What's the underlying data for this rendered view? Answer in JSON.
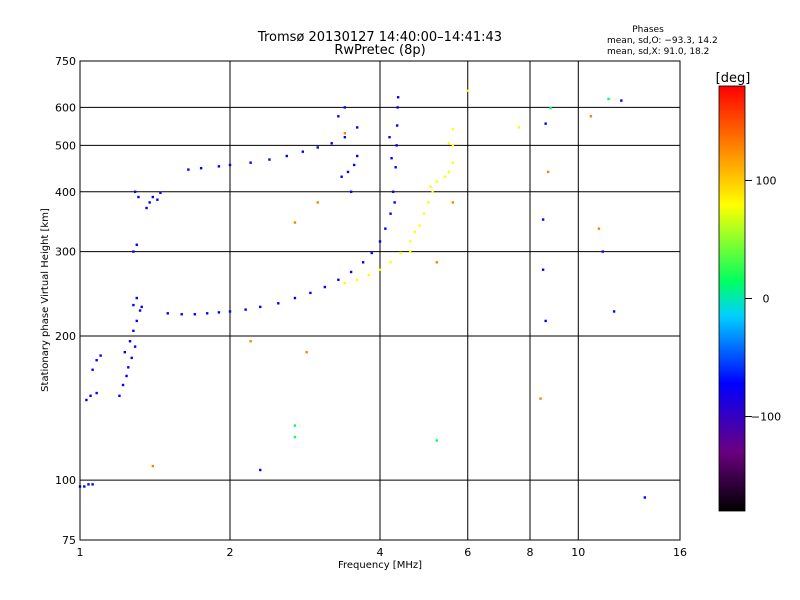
{
  "chart_data": {
    "type": "scatter",
    "title": "Tromsø 20130127 14:40:00–14:41:43",
    "subtitle": "RwPretec (8p)",
    "xlabel": "Frequency [MHz]",
    "ylabel": "Stationary phase Virtual Height [km]",
    "x_scale": "log",
    "y_scale": "log",
    "xlim": [
      1,
      16
    ],
    "ylim": [
      75,
      750
    ],
    "x_ticks": [
      1,
      2,
      4,
      6,
      8,
      10,
      16
    ],
    "y_ticks": [
      75,
      100,
      200,
      300,
      400,
      500,
      600,
      750
    ],
    "grid": true,
    "phases": {
      "title": "Phases",
      "line_o": "mean, sd,O: −93.3, 14.2",
      "line_x": "mean, sd,X:  91.0, 18.2"
    },
    "colorbar": {
      "label": "[deg]",
      "range": [
        -180,
        180
      ],
      "ticks": [
        100,
        0,
        -100
      ],
      "tick_labels": [
        "100",
        "0",
        "−100"
      ],
      "colors": [
        "#000000",
        "#6a0080",
        "#0000ff",
        "#00d0ff",
        "#00ff60",
        "#ffff00",
        "#ff8000",
        "#ff0000"
      ]
    },
    "series": [
      {
        "phase_deg": -100,
        "points": [
          [
            1.0,
            97
          ],
          [
            1.02,
            97
          ],
          [
            1.04,
            98
          ],
          [
            1.06,
            98
          ],
          [
            1.03,
            147
          ],
          [
            1.05,
            150
          ],
          [
            1.08,
            152
          ],
          [
            1.06,
            170
          ],
          [
            1.08,
            178
          ],
          [
            1.1,
            182
          ],
          [
            1.2,
            150
          ],
          [
            1.22,
            158
          ],
          [
            1.24,
            165
          ],
          [
            1.25,
            172
          ],
          [
            1.27,
            180
          ],
          [
            1.29,
            190
          ],
          [
            1.23,
            185
          ],
          [
            1.26,
            195
          ],
          [
            1.28,
            205
          ],
          [
            1.3,
            215
          ],
          [
            1.32,
            226
          ],
          [
            1.28,
            232
          ],
          [
            1.3,
            240
          ],
          [
            1.33,
            230
          ],
          [
            1.28,
            300
          ],
          [
            1.3,
            310
          ],
          [
            1.29,
            400
          ],
          [
            1.31,
            390
          ],
          [
            1.36,
            370
          ],
          [
            1.38,
            380
          ],
          [
            1.4,
            390
          ],
          [
            1.43,
            385
          ],
          [
            1.45,
            398
          ],
          [
            1.5,
            223
          ],
          [
            1.6,
            222
          ],
          [
            1.7,
            222
          ],
          [
            1.8,
            223
          ],
          [
            1.9,
            224
          ],
          [
            2.0,
            225
          ],
          [
            2.15,
            227
          ],
          [
            2.3,
            230
          ],
          [
            2.5,
            234
          ],
          [
            2.7,
            240
          ],
          [
            2.9,
            246
          ],
          [
            3.1,
            253
          ],
          [
            3.3,
            262
          ],
          [
            3.5,
            272
          ],
          [
            3.7,
            285
          ],
          [
            3.85,
            298
          ],
          [
            4.0,
            315
          ],
          [
            4.1,
            335
          ],
          [
            4.2,
            360
          ],
          [
            4.25,
            400
          ],
          [
            4.3,
            450
          ],
          [
            4.32,
            500
          ],
          [
            4.33,
            550
          ],
          [
            4.34,
            600
          ],
          [
            4.28,
            380
          ],
          [
            4.22,
            470
          ],
          [
            4.18,
            520
          ],
          [
            4.35,
            630
          ],
          [
            1.65,
            445
          ],
          [
            1.75,
            448
          ],
          [
            1.9,
            452
          ],
          [
            2.0,
            455
          ],
          [
            2.2,
            460
          ],
          [
            2.4,
            467
          ],
          [
            2.6,
            475
          ],
          [
            2.8,
            485
          ],
          [
            3.0,
            495
          ],
          [
            3.2,
            505
          ],
          [
            3.4,
            520
          ],
          [
            3.6,
            545
          ],
          [
            3.3,
            575
          ],
          [
            3.4,
            600
          ],
          [
            3.35,
            430
          ],
          [
            3.45,
            440
          ],
          [
            3.55,
            455
          ],
          [
            3.6,
            475
          ],
          [
            3.5,
            400
          ],
          [
            2.3,
            105
          ],
          [
            8.6,
            555
          ],
          [
            8.5,
            350
          ],
          [
            8.5,
            275
          ],
          [
            8.6,
            215
          ],
          [
            13.6,
            92
          ],
          [
            12.2,
            620
          ],
          [
            11.2,
            300
          ],
          [
            11.8,
            225
          ]
        ]
      },
      {
        "phase_deg": 100,
        "points": [
          [
            3.4,
            258
          ],
          [
            3.6,
            262
          ],
          [
            3.8,
            268
          ],
          [
            4.0,
            275
          ],
          [
            4.2,
            285
          ],
          [
            4.4,
            298
          ],
          [
            4.6,
            315
          ],
          [
            4.8,
            340
          ],
          [
            4.9,
            360
          ],
          [
            5.0,
            380
          ],
          [
            5.1,
            400
          ],
          [
            5.2,
            420
          ],
          [
            5.4,
            430
          ],
          [
            5.5,
            440
          ],
          [
            5.6,
            460
          ],
          [
            5.6,
            500
          ],
          [
            5.6,
            540
          ],
          [
            4.7,
            330
          ],
          [
            4.6,
            300
          ],
          [
            5.05,
            410
          ],
          [
            5.5,
            505
          ],
          [
            6.0,
            650
          ],
          [
            7.6,
            545
          ]
        ]
      },
      {
        "phase_deg": 150,
        "points": [
          [
            2.7,
            345
          ],
          [
            3.0,
            380
          ],
          [
            3.4,
            530
          ],
          [
            5.6,
            380
          ],
          [
            5.2,
            285
          ],
          [
            8.7,
            440
          ],
          [
            10.6,
            575
          ],
          [
            11.0,
            335
          ],
          [
            1.4,
            107
          ],
          [
            2.2,
            195
          ],
          [
            2.85,
            185
          ],
          [
            8.4,
            148
          ]
        ]
      },
      {
        "phase_deg": 0,
        "points": [
          [
            2.7,
            130
          ],
          [
            2.7,
            123
          ],
          [
            5.2,
            121
          ],
          [
            8.8,
            598
          ],
          [
            11.5,
            625
          ]
        ]
      }
    ]
  }
}
